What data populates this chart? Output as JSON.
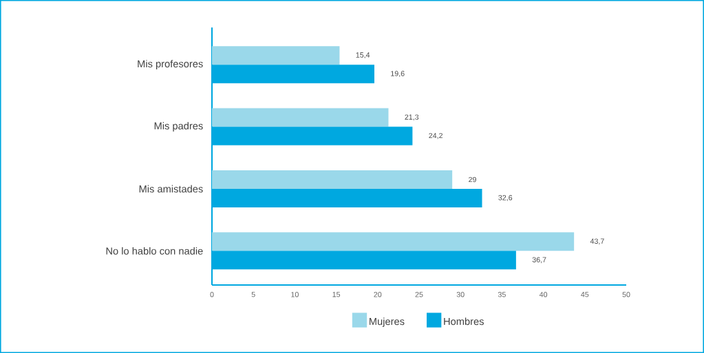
{
  "chart_data": {
    "type": "bar",
    "orientation": "horizontal",
    "categories": [
      "Mis profesores",
      "Mis padres",
      "Mis amistades",
      "No lo hablo con nadie"
    ],
    "series": [
      {
        "name": "Mujeres",
        "color": "#9ad8ea",
        "values": [
          15.4,
          21.3,
          29,
          43.7
        ],
        "value_labels": [
          "15,4",
          "21,3",
          "29",
          "43,7"
        ]
      },
      {
        "name": "Hombres",
        "color": "#00a8e0",
        "values": [
          19.6,
          24.2,
          32.6,
          36.7
        ],
        "value_labels": [
          "19,6",
          "24,2",
          "32,6",
          "36,7"
        ]
      }
    ],
    "xlim": [
      0,
      50
    ],
    "xticks": [
      0,
      5,
      10,
      15,
      20,
      25,
      30,
      35,
      40,
      45,
      50
    ],
    "grid": false,
    "legend": "bottom"
  }
}
